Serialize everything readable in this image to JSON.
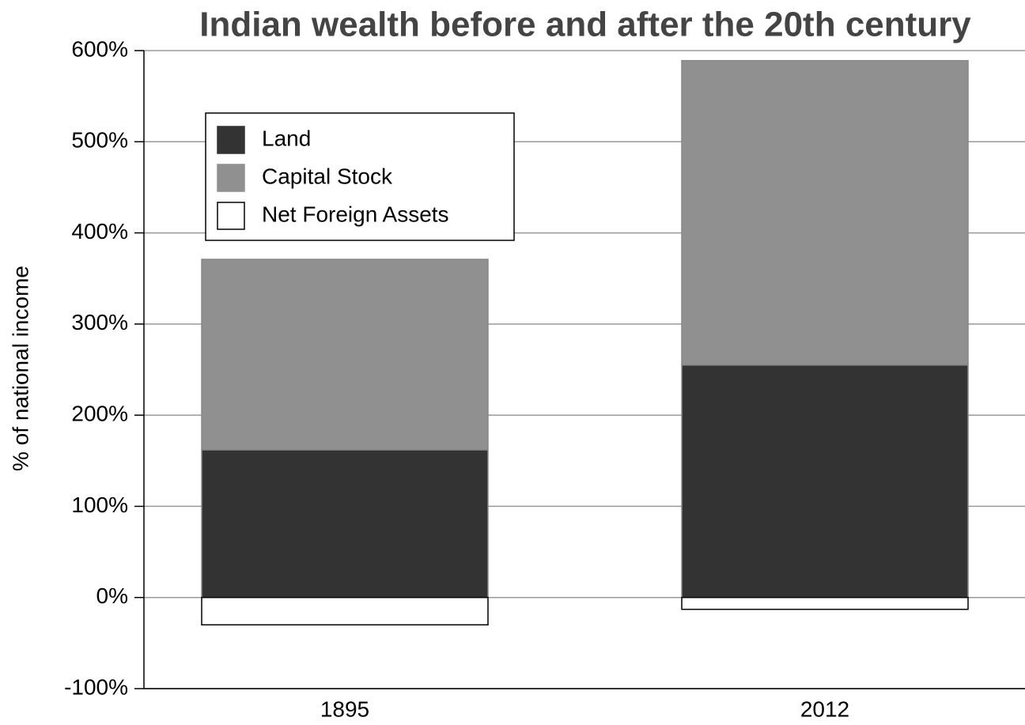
{
  "chart_data": {
    "type": "stacked_bar",
    "title": "Indian wealth before and after the 20th century",
    "y_label": "% of national income",
    "categories": [
      "1895",
      "2012"
    ],
    "series": [
      {
        "name": "Land",
        "color": "#333333",
        "values": [
          162,
          255
        ]
      },
      {
        "name": "Capital Stock",
        "color": "#909090",
        "values": [
          209,
          334
        ]
      },
      {
        "name": "Net Foreign Assets",
        "color": "#ffffff",
        "values": [
          -30,
          -13
        ]
      }
    ],
    "ylim": [
      -100,
      600
    ],
    "yticks": [
      {
        "value": -100,
        "label": "-100%"
      },
      {
        "value": 0,
        "label": "0%"
      },
      {
        "value": 100,
        "label": "100%"
      },
      {
        "value": 200,
        "label": "200%"
      },
      {
        "value": 300,
        "label": "300%"
      },
      {
        "value": 400,
        "label": "400%"
      },
      {
        "value": 500,
        "label": "500%"
      },
      {
        "value": 600,
        "label": "600%"
      }
    ],
    "grid": true,
    "legend": "upper left"
  }
}
